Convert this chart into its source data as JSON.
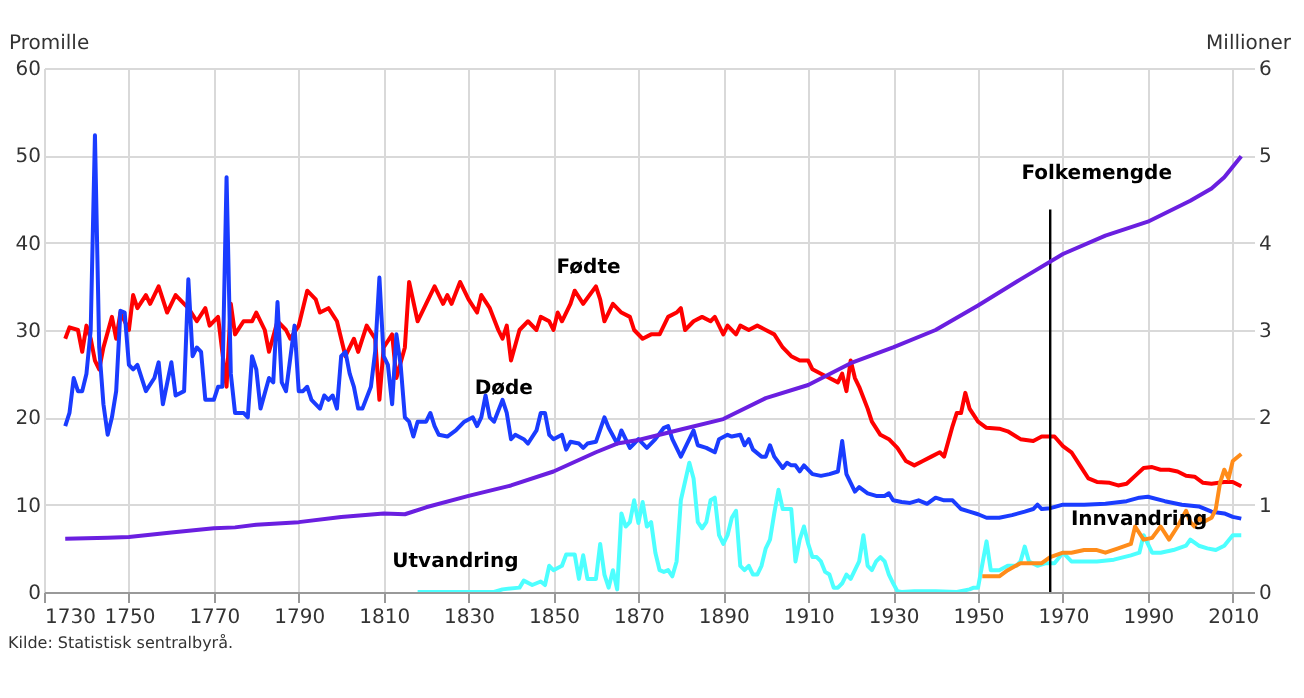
{
  "chart_data": {
    "type": "line",
    "ylabel": "Promille",
    "y2label": "Millioner",
    "xlim": [
      1730,
      2015
    ],
    "xticks": [
      1730,
      1750,
      1770,
      1790,
      1810,
      1830,
      1850,
      1870,
      1890,
      1910,
      1930,
      1950,
      1970,
      1990,
      2010
    ],
    "ylim": [
      0,
      60
    ],
    "yticks": [
      0,
      10,
      20,
      30,
      40,
      50,
      60
    ],
    "y2lim": [
      0,
      6
    ],
    "y2ticks": [
      0,
      1,
      2,
      3,
      4,
      5,
      6
    ],
    "grid": true,
    "legend": false,
    "line_style": "solid",
    "marker": "none",
    "series": [
      {
        "name": "Fødte",
        "color": "#ff0000",
        "x": [
          1735,
          1736,
          1738,
          1739,
          1740,
          1741,
          1742,
          1743,
          1744,
          1746,
          1747,
          1748,
          1750,
          1751,
          1752,
          1754,
          1755,
          1757,
          1759,
          1761,
          1763,
          1764,
          1766,
          1768,
          1769,
          1771,
          1773,
          1774,
          1775,
          1777,
          1779,
          1780,
          1782,
          1783,
          1785,
          1787,
          1788,
          1790,
          1792,
          1794,
          1795,
          1797,
          1799,
          1801,
          1803,
          1804,
          1806,
          1808,
          1809,
          1810,
          1812,
          1813,
          1815,
          1816,
          1818,
          1820,
          1822,
          1824,
          1825,
          1826,
          1828,
          1830,
          1832,
          1833,
          1835,
          1837,
          1838,
          1839,
          1840,
          1842,
          1844,
          1846,
          1847,
          1849,
          1850,
          1851,
          1852,
          1854,
          1855,
          1857,
          1860,
          1861,
          1862,
          1864,
          1866,
          1868,
          1869,
          1871,
          1873,
          1875,
          1877,
          1879,
          1880,
          1881,
          1883,
          1885,
          1887,
          1888,
          1890,
          1891,
          1893,
          1894,
          1896,
          1898,
          1900,
          1902,
          1904,
          1906,
          1908,
          1910,
          1911,
          1913,
          1915,
          1917,
          1918,
          1919,
          1920,
          1921,
          1922,
          1924,
          1925,
          1927,
          1929,
          1931,
          1933,
          1935,
          1937,
          1939,
          1941,
          1942,
          1944,
          1945,
          1946,
          1947,
          1948,
          1950,
          1952,
          1955,
          1957,
          1960,
          1963,
          1965,
          1968,
          1970,
          1972,
          1974,
          1976,
          1978,
          1981,
          1983,
          1985,
          1987,
          1989,
          1991,
          1993,
          1995,
          1997,
          1999,
          2001,
          2003,
          2005,
          2008,
          2010,
          2012
        ],
        "values": [
          29,
          30.3,
          30,
          27.5,
          30.5,
          29,
          26.5,
          25.5,
          28,
          31.5,
          29,
          32,
          30,
          34,
          32.5,
          34,
          33,
          35,
          32,
          34,
          33,
          32.5,
          31,
          32.5,
          30.5,
          31.5,
          23.5,
          33,
          29.5,
          31,
          31,
          32,
          30,
          27.5,
          31,
          30,
          29,
          30.5,
          34.5,
          33.5,
          32,
          32.5,
          31,
          27,
          29,
          27.5,
          30.5,
          29,
          22,
          28,
          29.5,
          24.5,
          28,
          35.5,
          31,
          33,
          35,
          33,
          34,
          33,
          35.5,
          33.5,
          32,
          34,
          32.5,
          30,
          29,
          30.5,
          26.5,
          30,
          31,
          30,
          31.5,
          31,
          30,
          32,
          31,
          33,
          34.5,
          33,
          35,
          33.5,
          31,
          33,
          32,
          31.5,
          30,
          29,
          29.5,
          29.5,
          31.5,
          32,
          32.5,
          30,
          31,
          31.5,
          31,
          31.5,
          29.5,
          30.5,
          29.5,
          30.5,
          30,
          30.5,
          30,
          29.5,
          28,
          27,
          26.5,
          26.5,
          25.5,
          25,
          24.5,
          24,
          25,
          23,
          26.5,
          24.5,
          23.5,
          21,
          19.5,
          18,
          17.5,
          16.5,
          15,
          14.5,
          15,
          15.5,
          16,
          15.5,
          19,
          20.5,
          20.5,
          22.8,
          21,
          19.5,
          18.8,
          18.7,
          18.4,
          17.5,
          17.3,
          17.8,
          17.8,
          16.7,
          16,
          14.5,
          13,
          12.6,
          12.5,
          12.2,
          12.4,
          13.3,
          14.2,
          14.3,
          14,
          14,
          13.8,
          13.3,
          13.2,
          12.5,
          12.4,
          12.6,
          12.6,
          12.1
        ]
      },
      {
        "name": "Døde",
        "color": "#1a3cff",
        "x": [
          1735,
          1736,
          1737,
          1738,
          1739,
          1740,
          1741,
          1742,
          1743,
          1744,
          1745,
          1746,
          1747,
          1748,
          1749,
          1750,
          1751,
          1752,
          1754,
          1756,
          1757,
          1758,
          1760,
          1761,
          1763,
          1764,
          1765,
          1766,
          1767,
          1768,
          1770,
          1771,
          1772,
          1773,
          1774,
          1775,
          1777,
          1778,
          1779,
          1780,
          1781,
          1783,
          1784,
          1785,
          1786,
          1787,
          1789,
          1790,
          1791,
          1792,
          1793,
          1795,
          1796,
          1797,
          1798,
          1799,
          1800,
          1801,
          1802,
          1803,
          1804,
          1805,
          1807,
          1808,
          1809,
          1810,
          1811,
          1812,
          1813,
          1814,
          1815,
          1816,
          1817,
          1818,
          1820,
          1821,
          1822,
          1823,
          1825,
          1827,
          1829,
          1831,
          1832,
          1833,
          1834,
          1835,
          1836,
          1838,
          1839,
          1840,
          1841,
          1843,
          1844,
          1846,
          1847,
          1848,
          1849,
          1850,
          1852,
          1853,
          1854,
          1856,
          1857,
          1858,
          1860,
          1862,
          1863,
          1865,
          1866,
          1868,
          1869,
          1870,
          1872,
          1874,
          1876,
          1877,
          1878,
          1880,
          1881,
          1883,
          1884,
          1886,
          1888,
          1889,
          1891,
          1892,
          1894,
          1895,
          1896,
          1897,
          1899,
          1900,
          1901,
          1902,
          1904,
          1905,
          1906,
          1907,
          1908,
          1909,
          1911,
          1913,
          1915,
          1917,
          1918,
          1919,
          1920,
          1921,
          1922,
          1924,
          1926,
          1928,
          1929,
          1930,
          1932,
          1934,
          1936,
          1938,
          1940,
          1942,
          1944,
          1946,
          1948,
          1950,
          1952,
          1955,
          1958,
          1961,
          1963,
          1964,
          1965,
          1967,
          1970,
          1975,
          1980,
          1985,
          1988,
          1990,
          1994,
          1998,
          2002,
          2005,
          2008,
          2010,
          2012
        ],
        "values": [
          19,
          20.5,
          24.5,
          23,
          23,
          25,
          30,
          52.3,
          28,
          21.5,
          18,
          20,
          23,
          32.2,
          32,
          26,
          25.5,
          26,
          23,
          24.5,
          26.3,
          21.5,
          26.3,
          22.5,
          23,
          35.8,
          27,
          28,
          27.5,
          22,
          22,
          23.5,
          23.5,
          47.5,
          25,
          20.5,
          20.5,
          20,
          27,
          25.5,
          21,
          24.5,
          24,
          33.2,
          24,
          23,
          30.5,
          23,
          23,
          23.5,
          22,
          21,
          22.5,
          22,
          22.5,
          21,
          27,
          27.5,
          25,
          23.5,
          21,
          21,
          23.5,
          27.5,
          36,
          27,
          26,
          21.5,
          29.5,
          26,
          20,
          19.5,
          17.8,
          19.5,
          19.5,
          20.5,
          19,
          18,
          17.8,
          18.5,
          19.5,
          20,
          19,
          20,
          22.5,
          20,
          19.5,
          22,
          20.5,
          17.5,
          18,
          17.5,
          17,
          18.5,
          20.5,
          20.5,
          18,
          17.5,
          18,
          16.3,
          17.2,
          17,
          16.5,
          17,
          17.2,
          20,
          18.8,
          17,
          18.5,
          16.5,
          17,
          17.5,
          16.5,
          17.5,
          18.8,
          19,
          17.5,
          15.5,
          16.5,
          18.5,
          16.8,
          16.5,
          16,
          17.5,
          18,
          17.8,
          18,
          16.8,
          17.5,
          16.3,
          15.5,
          15.5,
          16.8,
          15.5,
          14.2,
          14.8,
          14.5,
          14.5,
          13.8,
          14.5,
          13.5,
          13.3,
          13.5,
          13.8,
          17.3,
          13.5,
          12.5,
          11.5,
          12,
          11.3,
          11,
          11,
          11.3,
          10.5,
          10.3,
          10.2,
          10.5,
          10.1,
          10.8,
          10.5,
          10.5,
          9.5,
          9.2,
          8.9,
          8.5,
          8.5,
          8.8,
          9.2,
          9.5,
          10,
          9.5,
          9.6,
          10,
          10,
          10.1,
          10.4,
          10.8,
          10.9,
          10.4,
          10,
          9.8,
          9.2,
          9,
          8.6,
          8.4
        ]
      },
      {
        "name": "Utvandring",
        "color": "#4dffff",
        "x": [
          1818,
          1836,
          1838,
          1842,
          1843,
          1845,
          1847,
          1848,
          1849,
          1850,
          1852,
          1853,
          1855,
          1856,
          1857,
          1858,
          1860,
          1861,
          1862,
          1863,
          1864,
          1865,
          1866,
          1867,
          1868,
          1869,
          1870,
          1871,
          1872,
          1873,
          1874,
          1875,
          1876,
          1877,
          1878,
          1879,
          1880,
          1882,
          1883,
          1884,
          1885,
          1886,
          1887,
          1888,
          1889,
          1890,
          1891,
          1892,
          1893,
          1894,
          1895,
          1896,
          1897,
          1898,
          1899,
          1900,
          1901,
          1902,
          1903,
          1904,
          1905,
          1906,
          1907,
          1908,
          1909,
          1910,
          1911,
          1912,
          1913,
          1914,
          1915,
          1916,
          1917,
          1918,
          1919,
          1920,
          1921,
          1922,
          1923,
          1924,
          1925,
          1926,
          1927,
          1928,
          1929,
          1930,
          1931,
          1932,
          1935,
          1940,
          1945,
          1948,
          1949,
          1950,
          1952,
          1953,
          1955,
          1957,
          1959,
          1960,
          1961,
          1962,
          1964,
          1966,
          1968,
          1970,
          1972,
          1975,
          1978,
          1982,
          1986,
          1988,
          1989,
          1990,
          1991,
          1993,
          1996,
          1999,
          2000,
          2002,
          2004,
          2006,
          2008,
          2010,
          2012
        ],
        "values": [
          0,
          0,
          0.3,
          0.5,
          1.3,
          0.8,
          1.2,
          0.8,
          3,
          2.5,
          3,
          4.3,
          4.3,
          1.5,
          4.2,
          1.5,
          1.5,
          5.5,
          2,
          0.5,
          2.5,
          0.3,
          9,
          7.5,
          8,
          10.5,
          7.9,
          10.3,
          7.5,
          8,
          4.5,
          2.5,
          2.3,
          2.5,
          1.8,
          3.5,
          10.5,
          14.8,
          13,
          8,
          7.3,
          8,
          10.5,
          10.8,
          6.5,
          5.5,
          6.5,
          8.5,
          9.3,
          3,
          2.5,
          3,
          2,
          2,
          3,
          5,
          6,
          9,
          11.7,
          9.5,
          9.5,
          9.5,
          3.5,
          6,
          7.5,
          5.5,
          4,
          4,
          3.5,
          2.3,
          2,
          0.5,
          0.5,
          1,
          2,
          1.5,
          2.5,
          3.5,
          6.5,
          3,
          2.5,
          3.5,
          4,
          3.5,
          2,
          1,
          0.1,
          0,
          0.1,
          0.1,
          0,
          0.3,
          0.5,
          0.5,
          5.8,
          2.5,
          2.5,
          3,
          3,
          3.5,
          5.2,
          3.5,
          3,
          3.3,
          3.3,
          4.5,
          3.5,
          3.5,
          3.5,
          3.7,
          4.2,
          4.5,
          6.5,
          5.5,
          4.5,
          4.5,
          4.8,
          5.3,
          6,
          5.3,
          5,
          4.8,
          5.3,
          6.5,
          6.5
        ]
      },
      {
        "name": "Innvandring",
        "color": "#ff8c1a",
        "x": [
          1951,
          1955,
          1957,
          1960,
          1965,
          1967,
          1970,
          1972,
          1975,
          1978,
          1980,
          1983,
          1986,
          1987,
          1989,
          1991,
          1993,
          1995,
          1997,
          1999,
          2000,
          2001,
          2002,
          2003,
          2005,
          2006,
          2007,
          2008,
          2009,
          2010,
          2012
        ],
        "values": [
          1.8,
          1.8,
          2.5,
          3.3,
          3.3,
          4,
          4.5,
          4.5,
          4.8,
          4.8,
          4.5,
          5,
          5.5,
          7.5,
          6,
          6.2,
          7.5,
          6,
          7.5,
          9.3,
          8,
          7.5,
          8.5,
          8,
          8.5,
          9.5,
          12.5,
          14,
          13,
          15,
          15.8
        ]
      },
      {
        "name": "Folkemengde",
        "color": "#6a1fe0",
        "axis": "y2",
        "x": [
          1735,
          1745,
          1750,
          1760,
          1770,
          1775,
          1780,
          1790,
          1800,
          1810,
          1815,
          1820,
          1830,
          1840,
          1850,
          1860,
          1865,
          1870,
          1880,
          1890,
          1900,
          1910,
          1920,
          1930,
          1940,
          1950,
          1960,
          1970,
          1980,
          1990,
          2000,
          2005,
          2008,
          2012
        ],
        "values": [
          0.61,
          0.62,
          0.63,
          0.68,
          0.73,
          0.74,
          0.77,
          0.8,
          0.86,
          0.9,
          0.89,
          0.97,
          1.1,
          1.22,
          1.38,
          1.6,
          1.7,
          1.74,
          1.86,
          1.98,
          2.22,
          2.37,
          2.62,
          2.8,
          3.0,
          3.28,
          3.58,
          3.87,
          4.08,
          4.24,
          4.48,
          4.62,
          4.75,
          4.99
        ]
      }
    ],
    "ref_lines": [
      {
        "axis": "x",
        "value": 1967,
        "color": "#000000"
      }
    ],
    "annotations": [
      "Kilde: Statistisk sentralbyrå."
    ]
  }
}
